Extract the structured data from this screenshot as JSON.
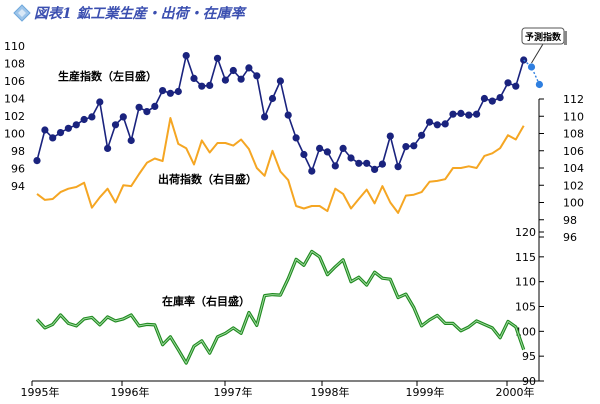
{
  "title": "図表1 鉱工業生産・出荷・在庫率",
  "colors": {
    "production": "#1a237e",
    "forecast": "#2f7fe0",
    "shipments": "#f5a623",
    "inventory": "#1f8a1f",
    "title": "#3b4fb0",
    "title_icon": "#6fa8dc"
  },
  "chart_data": [
    {
      "type": "line",
      "y_axis": "left",
      "ylim": [
        94,
        110
      ],
      "yticks": [
        "94",
        "96",
        "98",
        "100",
        "102",
        "104",
        "106",
        "108",
        "110"
      ],
      "series": [
        {
          "name": "生産指数（左目盛）",
          "values": [
            96.9,
            100.4,
            99.5,
            100.1,
            100.6,
            101.0,
            101.6,
            101.9,
            103.6,
            98.3,
            101.0,
            101.9,
            99.2,
            103.0,
            102.5,
            103.1,
            104.9,
            104.6,
            104.8,
            108.9,
            106.3,
            105.4,
            105.5,
            108.6,
            106.1,
            107.2,
            106.2,
            107.5,
            106.6,
            101.9,
            104.0,
            106.0,
            102.1,
            99.5,
            97.6,
            95.7,
            98.3,
            97.9,
            96.3,
            98.3,
            97.2,
            96.6,
            96.6,
            95.9,
            96.5,
            99.7,
            96.2,
            98.5,
            98.6,
            99.8,
            101.3,
            101.0,
            101.1,
            102.2,
            102.3,
            102.1,
            102.2,
            104.0,
            103.7,
            104.1,
            105.8,
            105.4,
            108.4
          ]
        },
        {
          "name": "予測指数",
          "values": [
            107.6,
            105.6
          ]
        }
      ],
      "callout": "予測指数"
    },
    {
      "type": "line",
      "y_axis": "right-upper",
      "ylim": [
        96,
        112
      ],
      "yticks": [
        "96",
        "98",
        "100",
        "102",
        "104",
        "106",
        "108",
        "110",
        "112"
      ],
      "series": [
        {
          "name": "出荷指数（右目盛）",
          "values": [
            101.0,
            100.3,
            100.4,
            101.2,
            101.6,
            101.8,
            102.3,
            99.4,
            100.6,
            101.6,
            100.0,
            102.0,
            101.9,
            103.3,
            104.6,
            105.1,
            104.8,
            109.8,
            106.8,
            106.3,
            104.4,
            107.2,
            105.8,
            106.9,
            106.9,
            106.6,
            107.3,
            106.2,
            104.0,
            103.1,
            106.0,
            103.6,
            102.6,
            99.6,
            99.3,
            99.6,
            99.6,
            99.0,
            101.6,
            101.0,
            99.3,
            100.4,
            101.5,
            99.9,
            101.9,
            100.0,
            98.8,
            100.8,
            100.9,
            101.2,
            102.4,
            102.5,
            102.7,
            104.0,
            104.0,
            104.2,
            104.0,
            105.4,
            105.7,
            106.3,
            107.8,
            107.3,
            108.9
          ]
        }
      ]
    },
    {
      "type": "line",
      "y_axis": "right-lower",
      "ylim": [
        90,
        120
      ],
      "yticks": [
        "90",
        "95",
        "100",
        "105",
        "110",
        "115",
        "120"
      ],
      "series": [
        {
          "name": "在庫率（右目盛）",
          "values": [
            102.4,
            100.7,
            101.4,
            103.3,
            101.6,
            101.1,
            102.5,
            102.8,
            101.3,
            102.9,
            102.1,
            102.5,
            103.3,
            101.1,
            101.4,
            101.3,
            97.3,
            98.9,
            96.3,
            93.6,
            97.0,
            98.1,
            95.6,
            98.9,
            99.6,
            100.7,
            99.6,
            103.8,
            101.2,
            107.2,
            107.4,
            107.3,
            110.6,
            114.5,
            113.3,
            116.1,
            115.0,
            111.4,
            113.0,
            114.4,
            110.0,
            110.9,
            109.3,
            111.9,
            110.7,
            110.5,
            106.8,
            107.5,
            104.8,
            101.1,
            102.3,
            103.2,
            101.6,
            101.6,
            100.1,
            100.9,
            102.1,
            101.4,
            100.7,
            98.7,
            102.0,
            100.9,
            96.3
          ]
        }
      ]
    }
  ],
  "x_axis": {
    "labels": [
      "1995年",
      "1996年",
      "1997年",
      "1998年",
      "1999年",
      "2000年"
    ]
  },
  "series_labels": {
    "production": "生産指数（左目盛）",
    "shipments": "出荷指数（右目盛）",
    "inventory": "在庫率（右目盛）"
  }
}
